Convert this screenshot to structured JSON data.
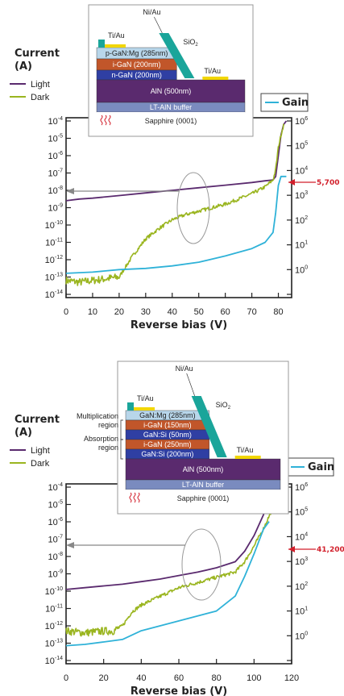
{
  "chart_data": [
    {
      "type": "line",
      "ylabel_left": "Current (A)",
      "ylabel_left_unit": "(A)",
      "ylabel_left_word": "Current",
      "ylabel_right": "Gain",
      "xlabel": "Reverse bias (V)",
      "xlim": [
        0,
        85
      ],
      "xticks": [
        0,
        10,
        20,
        30,
        40,
        50,
        60,
        70,
        80
      ],
      "ylim_left_exp": [
        -14,
        -4
      ],
      "ylim_right_exp": [
        -1,
        6
      ],
      "yscale": "log",
      "legend": [
        "Light",
        "Dark"
      ],
      "annotation_gain_label": "5,700",
      "annotation_gain_value": 5700,
      "series": [
        {
          "name": "Light",
          "axis": "left",
          "color": "#5a2a6e",
          "x": [
            0,
            5,
            10,
            20,
            30,
            40,
            50,
            60,
            70,
            75,
            78,
            79,
            80,
            81,
            82,
            83
          ],
          "log_y": [
            -8.6,
            -8.5,
            -8.45,
            -8.3,
            -8.15,
            -8.0,
            -7.85,
            -7.7,
            -7.55,
            -7.45,
            -7.4,
            -7.2,
            -6.0,
            -4.8,
            -4.2,
            -4.0
          ]
        },
        {
          "name": "Dark",
          "axis": "left",
          "color": "#9ab51f",
          "x": [
            0,
            5,
            10,
            15,
            20,
            25,
            30,
            35,
            40,
            45,
            50,
            55,
            60,
            65,
            70,
            75,
            78,
            79,
            80,
            81,
            82
          ],
          "log_y": [
            -13.2,
            -13.3,
            -13.2,
            -13.1,
            -13.0,
            -11.8,
            -10.8,
            -10.2,
            -9.7,
            -9.4,
            -9.2,
            -9.0,
            -8.8,
            -8.5,
            -8.2,
            -7.8,
            -7.4,
            -6.8,
            -5.5,
            -4.8,
            -4.2
          ]
        },
        {
          "name": "Gain",
          "axis": "right",
          "color": "#2fb2d8",
          "x": [
            0,
            10,
            20,
            30,
            40,
            50,
            60,
            70,
            75,
            78,
            79,
            80,
            81,
            82,
            83
          ],
          "log_y": [
            -0.15,
            -0.1,
            0.0,
            0.05,
            0.15,
            0.3,
            0.55,
            0.85,
            1.1,
            1.5,
            2.3,
            3.4,
            3.76,
            3.76,
            3.76
          ]
        }
      ]
    },
    {
      "type": "line",
      "ylabel_left": "Current (A)",
      "ylabel_left_unit": "(A)",
      "ylabel_left_word": "Current",
      "ylabel_right": "Gain",
      "xlabel": "Reverse bias (V)",
      "xlim": [
        0,
        120
      ],
      "xticks": [
        0,
        20,
        40,
        60,
        80,
        100,
        120
      ],
      "ylim_left_exp": [
        -14,
        -4
      ],
      "ylim_right_exp": [
        -1,
        6
      ],
      "yscale": "log",
      "legend": [
        "Light",
        "Dark"
      ],
      "annotation_gain_label": "41,200",
      "annotation_gain_value": 41200,
      "series": [
        {
          "name": "Light",
          "axis": "left",
          "color": "#5a2a6e",
          "x": [
            0,
            10,
            20,
            30,
            40,
            50,
            60,
            70,
            80,
            90,
            95,
            100,
            105,
            110
          ],
          "log_y": [
            -9.9,
            -9.8,
            -9.7,
            -9.6,
            -9.45,
            -9.3,
            -9.1,
            -8.9,
            -8.65,
            -8.3,
            -7.7,
            -6.8,
            -5.6,
            -4.1
          ]
        },
        {
          "name": "Dark",
          "axis": "left",
          "color": "#9ab51f",
          "x": [
            0,
            10,
            20,
            25,
            30,
            35,
            40,
            50,
            60,
            70,
            80,
            90,
            95,
            100,
            105,
            110,
            112
          ],
          "log_y": [
            -12.3,
            -12.4,
            -12.3,
            -12.3,
            -12.0,
            -11.2,
            -10.8,
            -10.3,
            -9.8,
            -9.5,
            -9.2,
            -8.9,
            -8.3,
            -7.4,
            -6.4,
            -5.2,
            -4.4
          ]
        },
        {
          "name": "Gain",
          "axis": "right",
          "color": "#2fb2d8",
          "x": [
            0,
            10,
            20,
            30,
            40,
            50,
            60,
            70,
            80,
            90,
            95,
            100,
            105,
            108
          ],
          "log_y": [
            -0.4,
            -0.35,
            -0.25,
            -0.15,
            0.2,
            0.4,
            0.6,
            0.8,
            1.0,
            1.6,
            2.4,
            3.3,
            4.3,
            4.61
          ]
        }
      ]
    }
  ],
  "insets": [
    {
      "layers": [
        {
          "label": "p-GaN:Mg (285nm)",
          "color": "#b8d6ea"
        },
        {
          "label": "i-GaN (200nm)",
          "color": "#c1562a"
        },
        {
          "label": "n-GaN (200nm)",
          "color": "#2f3fa3"
        },
        {
          "label": "AlN (500nm)",
          "color": "#5a2a6e"
        },
        {
          "label": "LT-AlN buffer",
          "color": "#7a8bbf"
        },
        {
          "label": "Sapphire (0001)",
          "color": "#ffffff"
        }
      ],
      "contact_ti_au_top": "Ti/Au",
      "contact_ni_au": "Ni/Au",
      "contact_sio2": "SiO2",
      "contact_ti_au_right": "Ti/Au"
    },
    {
      "layers": [
        {
          "label": "GaN:Mg (285nm)",
          "color": "#b8d6ea"
        },
        {
          "label": "i-GaN (150nm)",
          "color": "#c1562a"
        },
        {
          "label": "GaN:Si (50nm)",
          "color": "#2f3fa3"
        },
        {
          "label": "i-GaN (250nm)",
          "color": "#c1562a"
        },
        {
          "label": "GaN:Si (200nm)",
          "color": "#2f3fa3"
        },
        {
          "label": "AlN (500nm)",
          "color": "#5a2a6e"
        },
        {
          "label": "LT-AlN buffer",
          "color": "#7a8bbf"
        },
        {
          "label": "Sapphire (0001)",
          "color": "#ffffff"
        }
      ],
      "contact_ti_au_top": "Ti/Au",
      "contact_ni_au": "Ni/Au",
      "contact_sio2": "SiO2",
      "contact_ti_au_right": "Ti/Au",
      "region_multiplication": "Multiplication region",
      "region_absorption": "Absorption region"
    }
  ],
  "colors": {
    "light": "#5a2a6e",
    "dark": "#9ab51f",
    "gain": "#2fb2d8",
    "contact": "#1aa59a",
    "gold": "#f2d600",
    "annotation": "#d21f2b"
  }
}
